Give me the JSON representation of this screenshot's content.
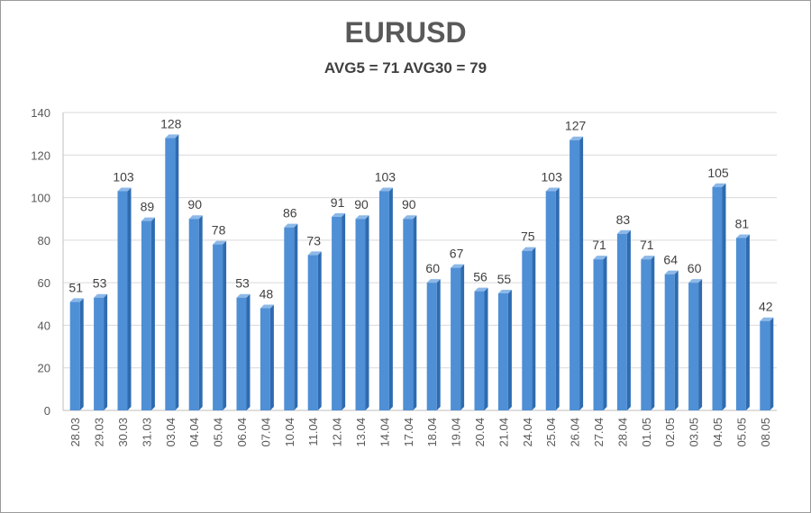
{
  "chart_data": {
    "type": "bar",
    "title": "EURUSD",
    "subtitle": "AVG5 = 71 AVG30 = 79",
    "categories": [
      "28.03",
      "29.03",
      "30.03",
      "31.03",
      "03.04",
      "04.04",
      "05.04",
      "06.04",
      "07.04",
      "10.04",
      "11.04",
      "12.04",
      "13.04",
      "14.04",
      "17.04",
      "18.04",
      "19.04",
      "20.04",
      "21.04",
      "24.04",
      "25.04",
      "26.04",
      "27.04",
      "28.04",
      "01.05",
      "02.05",
      "03.05",
      "04.05",
      "05.05",
      "08.05"
    ],
    "values": [
      51,
      53,
      103,
      89,
      128,
      90,
      78,
      53,
      48,
      86,
      73,
      91,
      90,
      103,
      90,
      60,
      67,
      56,
      55,
      75,
      103,
      127,
      71,
      83,
      71,
      64,
      60,
      105,
      81,
      42
    ],
    "ylim": [
      0,
      140
    ],
    "yticks": [
      0,
      20,
      40,
      60,
      80,
      100,
      120,
      140
    ],
    "grid": true,
    "legend": "none",
    "data_labels": true,
    "colors": {
      "bar_face": "#4f8fd5",
      "bar_side": "#2e6bb0",
      "bar_top": "#8cb8e8",
      "grid": "#d9d9d9",
      "axis": "#bfbfbf"
    }
  }
}
